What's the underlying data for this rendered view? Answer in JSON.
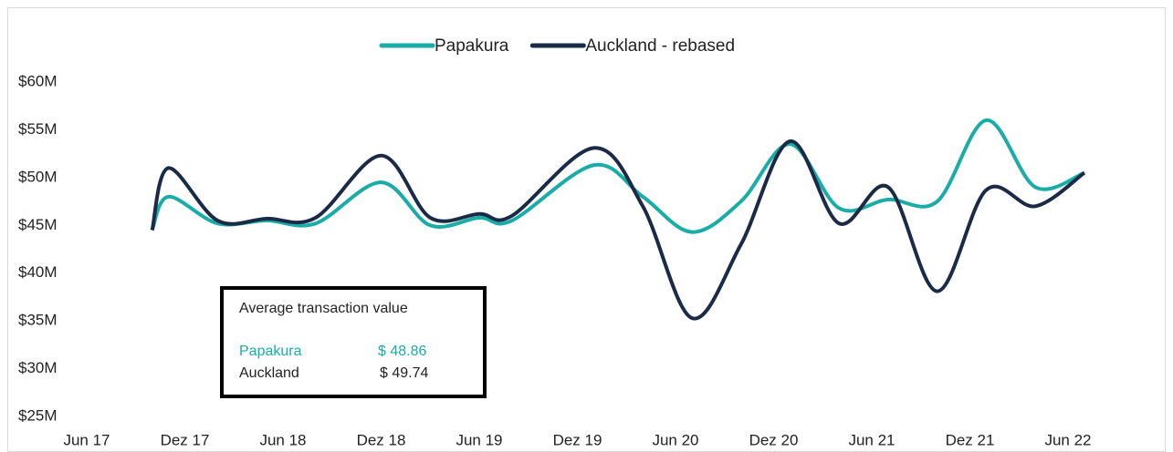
{
  "chart_data": {
    "type": "line",
    "legend_position": "top",
    "x": [
      4,
      5,
      8,
      11,
      14,
      18,
      21,
      24,
      26,
      31,
      34,
      37,
      40,
      43,
      46,
      49,
      52,
      55,
      58,
      61
    ],
    "xlim": [
      0,
      60
    ],
    "xticks": [
      {
        "value": 0,
        "label": "Jun 17"
      },
      {
        "value": 6,
        "label": "Dez 17"
      },
      {
        "value": 12,
        "label": "Jun 18"
      },
      {
        "value": 18,
        "label": "Dez 18"
      },
      {
        "value": 24,
        "label": "Jun 19"
      },
      {
        "value": 30,
        "label": "Dez 19"
      },
      {
        "value": 36,
        "label": "Jun 20"
      },
      {
        "value": 42,
        "label": "Dez 20"
      },
      {
        "value": 48,
        "label": "Jun 21"
      },
      {
        "value": 54,
        "label": "Dez 21"
      },
      {
        "value": 60,
        "label": "Jun 22"
      }
    ],
    "ylim": [
      25,
      60
    ],
    "yticks": [
      {
        "value": 25,
        "label": "$25M"
      },
      {
        "value": 30,
        "label": "$30M"
      },
      {
        "value": 35,
        "label": "$35M"
      },
      {
        "value": 40,
        "label": "$40M"
      },
      {
        "value": 45,
        "label": "$45M"
      },
      {
        "value": 50,
        "label": "$50M"
      },
      {
        "value": 55,
        "label": "$55M"
      },
      {
        "value": 60,
        "label": "$60M"
      }
    ],
    "series": [
      {
        "name": "Papakura",
        "color": "#1aada8",
        "values": [
          44.5,
          48,
          45.2,
          45.5,
          45.2,
          49.5,
          45,
          45.8,
          45.5,
          51.3,
          48,
          44.3,
          47.5,
          53.5,
          46.8,
          47.7,
          47.5,
          56,
          49,
          50.5
        ]
      },
      {
        "name": "Auckland - rebased",
        "color": "#1b2a47",
        "values": [
          44.5,
          51,
          45.5,
          45.7,
          45.8,
          52.3,
          45.8,
          46.2,
          46,
          53.1,
          47,
          35.3,
          43,
          53.8,
          45.2,
          49,
          38.1,
          48.7,
          47,
          50.5
        ]
      }
    ],
    "annotation": {
      "title": "Average transaction value",
      "rows": [
        [
          "Papakura",
          "$ 48.86"
        ],
        [
          "Auckland",
          "$ 49.74"
        ]
      ]
    }
  }
}
